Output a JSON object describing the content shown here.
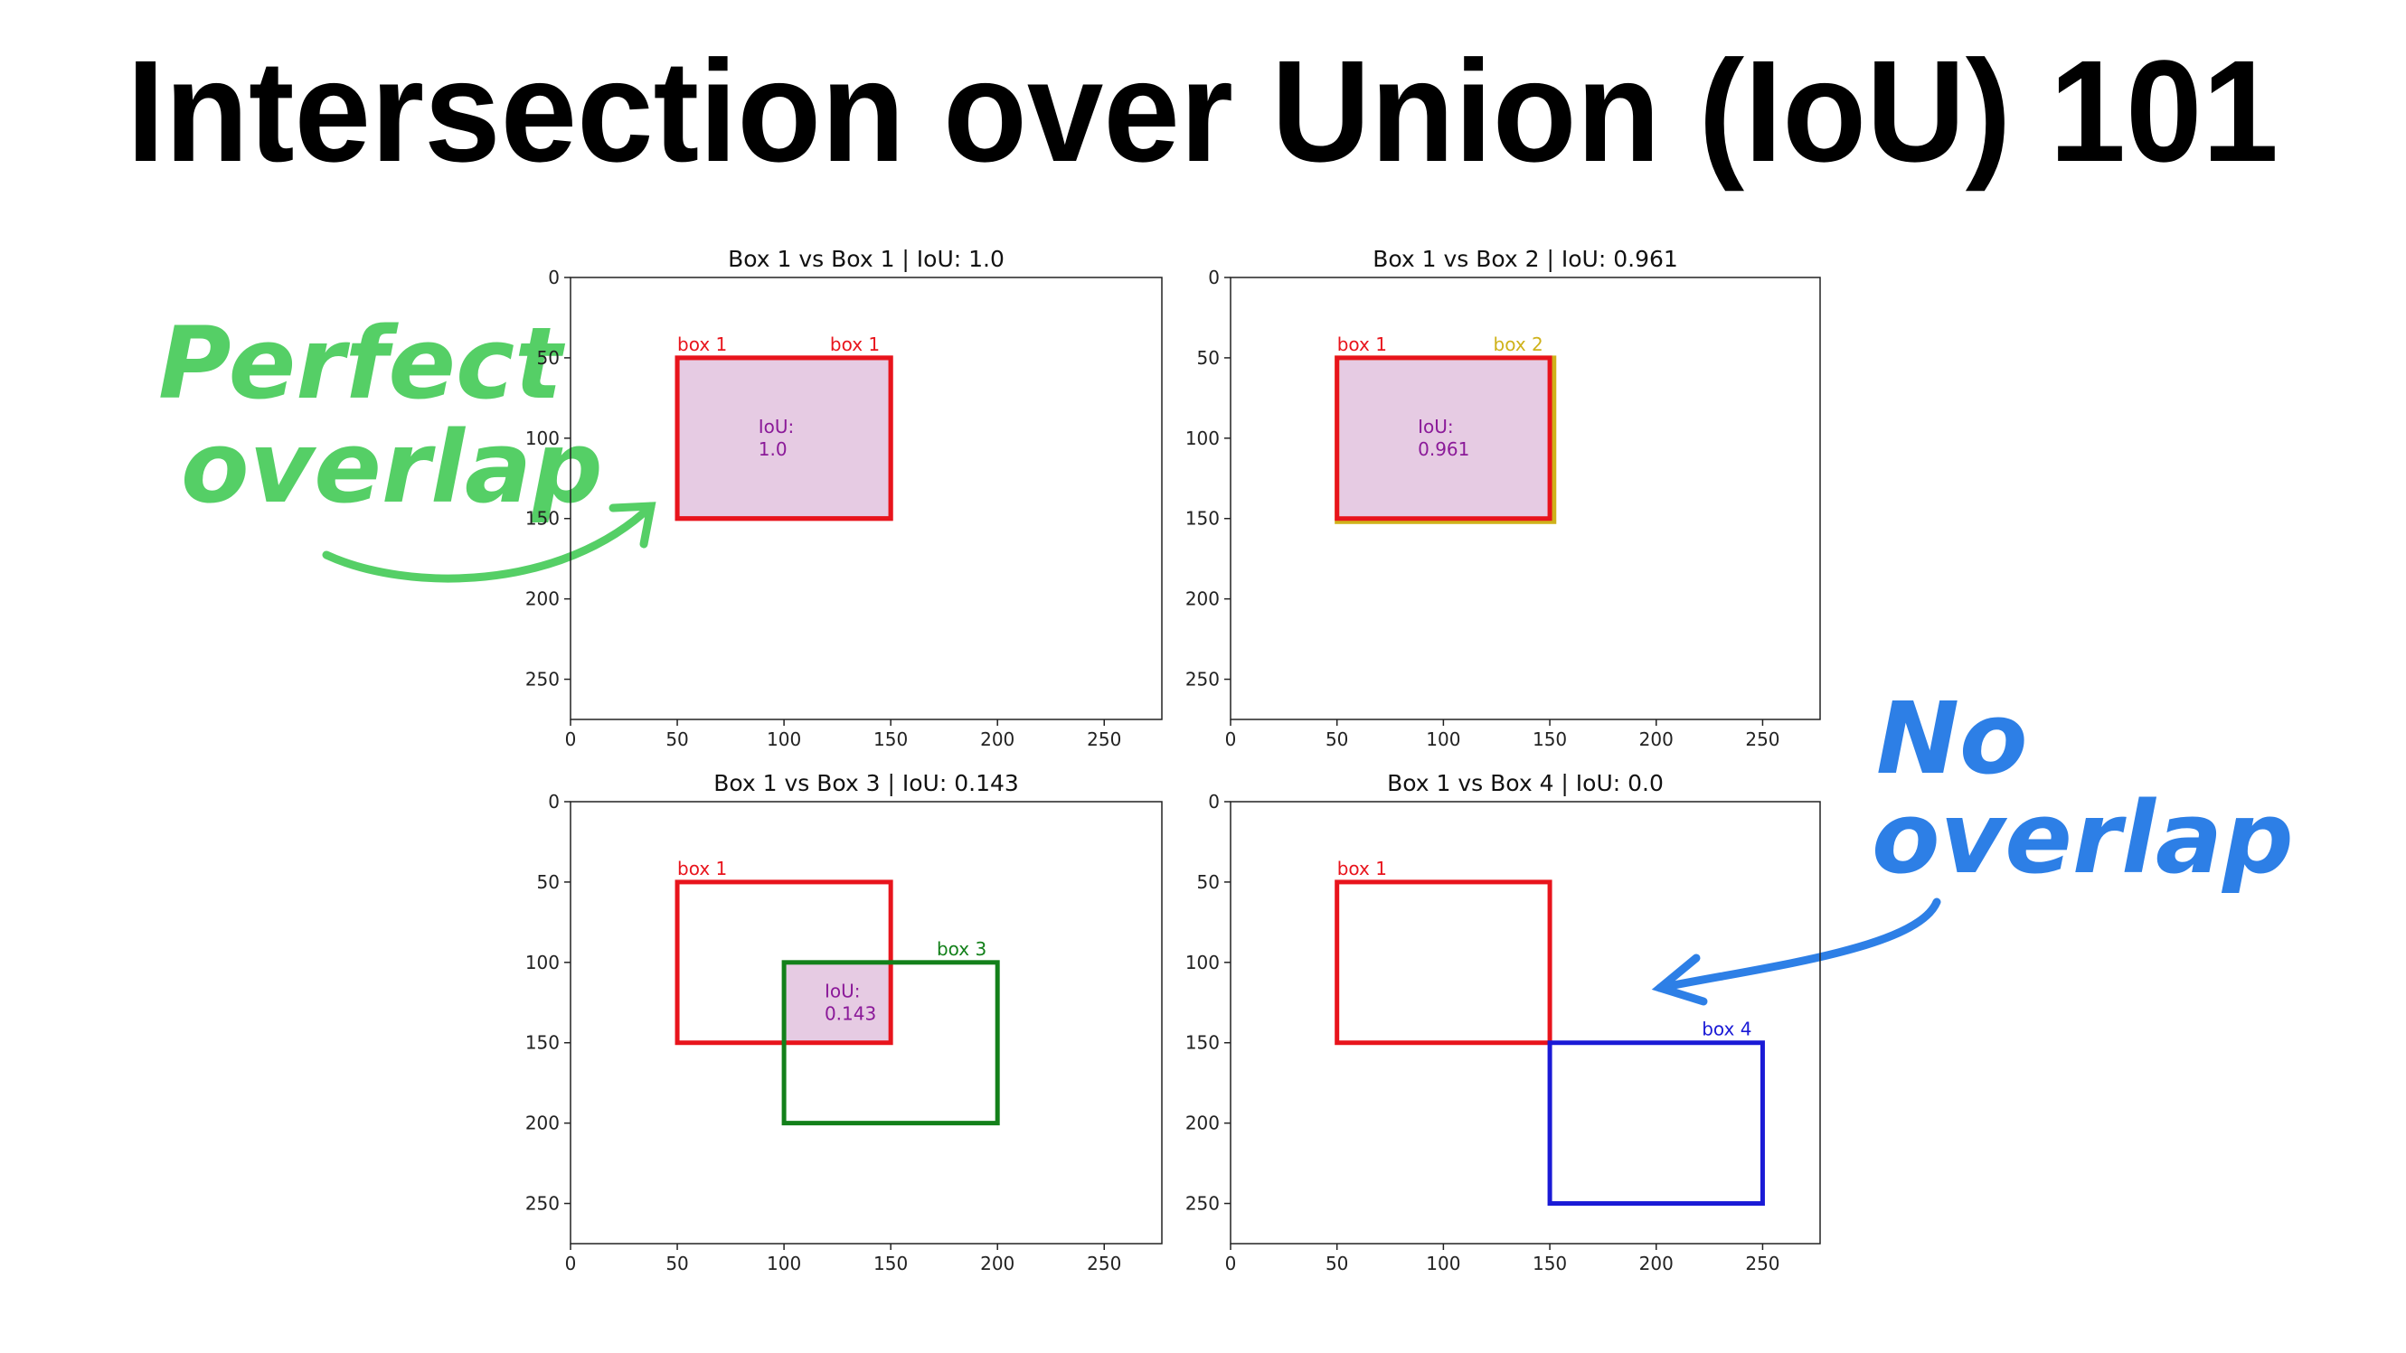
{
  "title": "Intersection over Union (IoU) 101",
  "annotations": [
    {
      "lines": [
        "Perfect",
        "overlap"
      ],
      "color": "#55cf66"
    },
    {
      "lines": [
        "No",
        "overlap"
      ],
      "color": "#2d7fe6"
    }
  ],
  "chart_data": [
    {
      "type": "boxes",
      "title": "Box 1 vs Box 1 | IoU: 1.0",
      "xlim": [
        0,
        277
      ],
      "ylim": [
        275,
        0
      ],
      "xticks": [
        0,
        50,
        100,
        150,
        200,
        250
      ],
      "yticks": [
        0,
        50,
        100,
        150,
        200,
        250
      ],
      "boxes": [
        {
          "name": "box 1",
          "color": "#e8141c",
          "x": [
            50,
            150
          ],
          "y": [
            50,
            150
          ]
        },
        {
          "name": "box 1",
          "color": "#e8141c",
          "x": [
            50,
            150
          ],
          "y": [
            50,
            150
          ]
        }
      ],
      "intersection": {
        "x": [
          50,
          150
        ],
        "y": [
          50,
          150
        ],
        "color": "#e6cbe3",
        "label": [
          "IoU:",
          "1.0"
        ],
        "label_color": "#8b1a99"
      }
    },
    {
      "type": "boxes",
      "title": "Box 1 vs Box 2 | IoU: 0.961",
      "xlim": [
        0,
        277
      ],
      "ylim": [
        275,
        0
      ],
      "xticks": [
        0,
        50,
        100,
        150,
        200,
        250
      ],
      "yticks": [
        0,
        50,
        100,
        150,
        200,
        250
      ],
      "boxes": [
        {
          "name": "box 2",
          "color": "#cfb21a",
          "x": [
            50,
            152
          ],
          "y": [
            50,
            152
          ]
        },
        {
          "name": "box 1",
          "color": "#e8141c",
          "x": [
            50,
            150
          ],
          "y": [
            50,
            150
          ]
        }
      ],
      "label_order": [
        1,
        0
      ],
      "intersection": {
        "x": [
          50,
          150
        ],
        "y": [
          50,
          150
        ],
        "color": "#e6cbe3",
        "label": [
          "IoU:",
          "0.961"
        ],
        "label_color": "#8b1a99"
      }
    },
    {
      "type": "boxes",
      "title": "Box 1 vs Box 3 | IoU: 0.143",
      "xlim": [
        0,
        277
      ],
      "ylim": [
        275,
        0
      ],
      "xticks": [
        0,
        50,
        100,
        150,
        200,
        250
      ],
      "yticks": [
        0,
        50,
        100,
        150,
        200,
        250
      ],
      "boxes": [
        {
          "name": "box 1",
          "color": "#e8141c",
          "x": [
            50,
            150
          ],
          "y": [
            50,
            150
          ]
        },
        {
          "name": "box 3",
          "color": "#13801a",
          "x": [
            100,
            200
          ],
          "y": [
            100,
            200
          ]
        }
      ],
      "intersection": {
        "x": [
          100,
          150
        ],
        "y": [
          100,
          150
        ],
        "color": "#e6cbe3",
        "label": [
          "IoU:",
          "0.143"
        ],
        "label_color": "#8b1a99"
      }
    },
    {
      "type": "boxes",
      "title": "Box 1 vs Box 4 | IoU: 0.0",
      "xlim": [
        0,
        277
      ],
      "ylim": [
        275,
        0
      ],
      "xticks": [
        0,
        50,
        100,
        150,
        200,
        250
      ],
      "yticks": [
        0,
        50,
        100,
        150,
        200,
        250
      ],
      "boxes": [
        {
          "name": "box 1",
          "color": "#e8141c",
          "x": [
            50,
            150
          ],
          "y": [
            50,
            150
          ]
        },
        {
          "name": "box 4",
          "color": "#1a1ad6",
          "x": [
            150,
            250
          ],
          "y": [
            150,
            250
          ]
        }
      ]
    }
  ]
}
